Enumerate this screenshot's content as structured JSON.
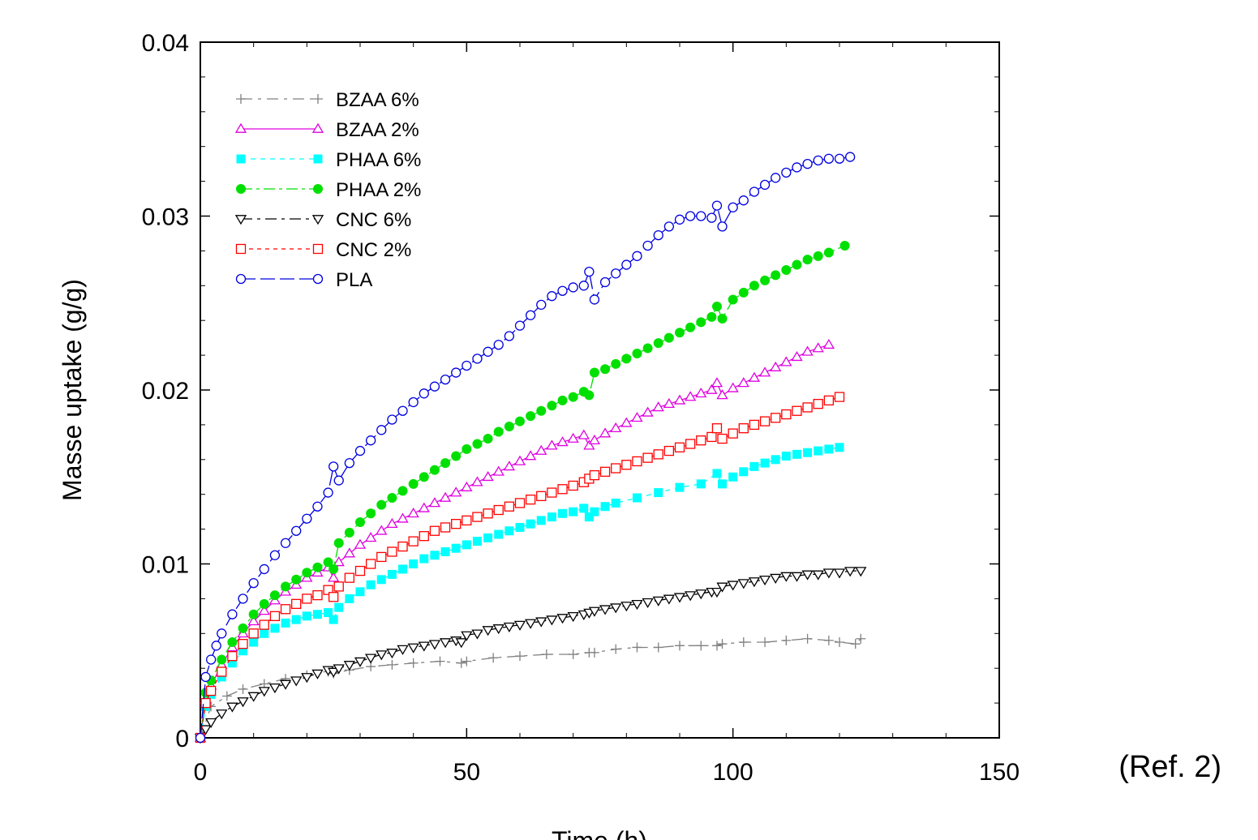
{
  "chart_data": {
    "type": "line",
    "xlabel": "Time (h)",
    "ylabel": "Masse uptake (g/g)",
    "annotation": "(Ref. 2)",
    "xlim": [
      0,
      150
    ],
    "ylim": [
      0,
      0.04
    ],
    "xticks": [
      0,
      50,
      100,
      150
    ],
    "xtick_labels": [
      "0",
      "50",
      "100",
      "150"
    ],
    "yticks": [
      0,
      0.01,
      0.02,
      0.03,
      0.04
    ],
    "ytick_labels": [
      "0",
      "0.01",
      "0.02",
      "0.03",
      "0.04"
    ],
    "grid": false,
    "legend_position": "top-left",
    "series": [
      {
        "name": "BZAA 6%",
        "color": "#808080",
        "marker": "plus",
        "dash": "14,7,4,7",
        "x": [
          0,
          2,
          5,
          8,
          12,
          16,
          20,
          24,
          25,
          28,
          32,
          36,
          40,
          45,
          49,
          50,
          55,
          60,
          65,
          70,
          73,
          74,
          78,
          82,
          86,
          90,
          94,
          97,
          98,
          102,
          106,
          110,
          114,
          118,
          120,
          123,
          124
        ],
        "y": [
          0,
          0.0018,
          0.0024,
          0.0028,
          0.0031,
          0.0034,
          0.0036,
          0.0038,
          0.0037,
          0.0039,
          0.0041,
          0.0042,
          0.0043,
          0.0044,
          0.0043,
          0.0044,
          0.0046,
          0.0047,
          0.0048,
          0.0048,
          0.0049,
          0.0049,
          0.0051,
          0.0052,
          0.0052,
          0.0053,
          0.0053,
          0.0053,
          0.0054,
          0.0055,
          0.0055,
          0.0056,
          0.0057,
          0.0056,
          0.0055,
          0.0054,
          0.0057
        ]
      },
      {
        "name": "BZAA 2%",
        "color": "#e000e0",
        "marker": "triangle-up",
        "dash": "",
        "x": [
          0,
          1,
          2,
          4,
          6,
          8,
          10,
          12,
          14,
          16,
          18,
          20,
          22,
          24,
          25,
          26,
          28,
          30,
          32,
          34,
          36,
          38,
          40,
          42,
          44,
          46,
          48,
          50,
          52,
          54,
          56,
          58,
          60,
          62,
          64,
          66,
          68,
          70,
          72,
          73,
          74,
          76,
          78,
          80,
          82,
          84,
          86,
          88,
          90,
          92,
          94,
          96,
          97,
          98,
          100,
          102,
          104,
          106,
          108,
          110,
          112,
          114,
          116,
          118
        ],
        "y": [
          0,
          0.0022,
          0.003,
          0.0042,
          0.0052,
          0.006,
          0.0067,
          0.0073,
          0.0079,
          0.0084,
          0.0088,
          0.0092,
          0.0095,
          0.0098,
          0.0092,
          0.0101,
          0.0106,
          0.0111,
          0.0115,
          0.0119,
          0.0123,
          0.0126,
          0.0129,
          0.0132,
          0.0135,
          0.0138,
          0.0141,
          0.0144,
          0.0147,
          0.015,
          0.0153,
          0.0156,
          0.0159,
          0.0162,
          0.0165,
          0.0168,
          0.017,
          0.0172,
          0.0174,
          0.0168,
          0.0171,
          0.0175,
          0.0178,
          0.0181,
          0.0184,
          0.0187,
          0.019,
          0.0192,
          0.0194,
          0.0196,
          0.0198,
          0.02,
          0.0204,
          0.0197,
          0.0201,
          0.0204,
          0.0207,
          0.021,
          0.0213,
          0.0216,
          0.0219,
          0.0222,
          0.0224,
          0.0226
        ]
      },
      {
        "name": "PHAA 6%",
        "color": "#00ffff",
        "marker": "square-filled",
        "dash": "6,6",
        "x": [
          0,
          1,
          2,
          4,
          6,
          8,
          10,
          12,
          14,
          16,
          18,
          20,
          22,
          24,
          25,
          26,
          28,
          30,
          32,
          34,
          36,
          38,
          40,
          42,
          44,
          46,
          48,
          50,
          52,
          54,
          56,
          58,
          60,
          62,
          64,
          66,
          68,
          70,
          72,
          73,
          74,
          76,
          78,
          82,
          86,
          90,
          94,
          97,
          98,
          100,
          102,
          104,
          106,
          108,
          110,
          112,
          114,
          116,
          118,
          120
        ],
        "y": [
          0,
          0.0018,
          0.0025,
          0.0035,
          0.0043,
          0.005,
          0.0055,
          0.006,
          0.0063,
          0.0066,
          0.0068,
          0.007,
          0.0071,
          0.0072,
          0.0068,
          0.0075,
          0.008,
          0.0084,
          0.0088,
          0.0091,
          0.0094,
          0.0097,
          0.01,
          0.0103,
          0.0105,
          0.0107,
          0.0109,
          0.0111,
          0.0113,
          0.0115,
          0.0117,
          0.0119,
          0.0121,
          0.0123,
          0.0125,
          0.0127,
          0.0129,
          0.013,
          0.0132,
          0.0127,
          0.013,
          0.0133,
          0.0135,
          0.0138,
          0.0141,
          0.0144,
          0.0146,
          0.0152,
          0.0146,
          0.015,
          0.0153,
          0.0156,
          0.0158,
          0.016,
          0.0162,
          0.0163,
          0.0164,
          0.0165,
          0.0166,
          0.0167
        ]
      },
      {
        "name": "PHAA 2%",
        "color": "#00e000",
        "marker": "circle-filled",
        "dash": "14,5,4,5",
        "x": [
          0,
          1,
          2,
          4,
          6,
          8,
          10,
          12,
          14,
          16,
          18,
          20,
          22,
          24,
          25,
          26,
          28,
          30,
          32,
          34,
          36,
          38,
          40,
          42,
          44,
          46,
          48,
          50,
          52,
          54,
          56,
          58,
          60,
          62,
          64,
          66,
          68,
          70,
          72,
          73,
          74,
          76,
          78,
          80,
          82,
          84,
          86,
          88,
          90,
          92,
          94,
          96,
          97,
          98,
          100,
          102,
          104,
          106,
          108,
          110,
          112,
          114,
          116,
          118,
          121
        ],
        "y": [
          0,
          0.0026,
          0.0033,
          0.0045,
          0.0055,
          0.0063,
          0.0071,
          0.0077,
          0.0082,
          0.0087,
          0.0091,
          0.0095,
          0.0098,
          0.0101,
          0.0097,
          0.0112,
          0.0118,
          0.0124,
          0.0129,
          0.0134,
          0.0138,
          0.0142,
          0.0146,
          0.015,
          0.0154,
          0.0158,
          0.0162,
          0.0166,
          0.0169,
          0.0172,
          0.0176,
          0.0179,
          0.0182,
          0.0185,
          0.0188,
          0.0191,
          0.0194,
          0.0196,
          0.0199,
          0.0197,
          0.021,
          0.0212,
          0.0215,
          0.0218,
          0.0221,
          0.0224,
          0.0227,
          0.023,
          0.0233,
          0.0236,
          0.0239,
          0.0242,
          0.0248,
          0.0241,
          0.0252,
          0.0256,
          0.026,
          0.0263,
          0.0266,
          0.0269,
          0.0272,
          0.0275,
          0.0277,
          0.0279,
          0.0283
        ]
      },
      {
        "name": "CNC 6%",
        "color": "#000000",
        "marker": "triangle-down",
        "dash": "14,6,4,6",
        "x": [
          0,
          1,
          2,
          4,
          6,
          8,
          10,
          12,
          14,
          16,
          18,
          20,
          22,
          24,
          25,
          26,
          28,
          30,
          32,
          34,
          36,
          38,
          40,
          42,
          44,
          46,
          48,
          49,
          50,
          52,
          54,
          56,
          58,
          60,
          62,
          64,
          66,
          68,
          70,
          72,
          73,
          74,
          76,
          78,
          80,
          82,
          84,
          86,
          88,
          90,
          92,
          94,
          96,
          97,
          98,
          100,
          102,
          104,
          106,
          108,
          110,
          112,
          114,
          116,
          118,
          120,
          122,
          124
        ],
        "y": [
          0,
          0.0005,
          0.0009,
          0.0014,
          0.0018,
          0.0021,
          0.0024,
          0.0027,
          0.0029,
          0.0031,
          0.0033,
          0.0035,
          0.0037,
          0.0039,
          0.0038,
          0.004,
          0.0042,
          0.0044,
          0.0046,
          0.0048,
          0.0049,
          0.0051,
          0.0052,
          0.0053,
          0.0054,
          0.0055,
          0.0056,
          0.0055,
          0.0059,
          0.006,
          0.0062,
          0.0063,
          0.0064,
          0.0065,
          0.0066,
          0.0067,
          0.0068,
          0.0069,
          0.007,
          0.0071,
          0.0072,
          0.0073,
          0.0074,
          0.0075,
          0.0076,
          0.0077,
          0.0078,
          0.0079,
          0.008,
          0.0081,
          0.0082,
          0.0083,
          0.0084,
          0.0084,
          0.0087,
          0.0088,
          0.0089,
          0.009,
          0.0091,
          0.0092,
          0.0093,
          0.0093,
          0.0094,
          0.0094,
          0.0095,
          0.0095,
          0.0096,
          0.0096
        ]
      },
      {
        "name": "CNC 2%",
        "color": "#ff0000",
        "marker": "square-open",
        "dash": "5,5",
        "x": [
          0,
          1,
          2,
          4,
          6,
          8,
          10,
          12,
          14,
          16,
          18,
          20,
          22,
          24,
          25,
          26,
          28,
          30,
          32,
          34,
          36,
          38,
          40,
          42,
          44,
          46,
          48,
          50,
          52,
          54,
          56,
          58,
          60,
          62,
          64,
          66,
          68,
          70,
          72,
          73,
          74,
          76,
          78,
          80,
          82,
          84,
          86,
          88,
          90,
          92,
          94,
          96,
          97,
          98,
          100,
          102,
          104,
          106,
          108,
          110,
          112,
          114,
          116,
          118,
          120
        ],
        "y": [
          0,
          0.002,
          0.0027,
          0.0038,
          0.0047,
          0.0054,
          0.006,
          0.0065,
          0.007,
          0.0074,
          0.0077,
          0.008,
          0.0082,
          0.0085,
          0.0081,
          0.0087,
          0.0092,
          0.0096,
          0.01,
          0.0104,
          0.0107,
          0.011,
          0.0113,
          0.0116,
          0.0119,
          0.0121,
          0.0123,
          0.0125,
          0.0127,
          0.0129,
          0.0131,
          0.0133,
          0.0135,
          0.0137,
          0.0139,
          0.0141,
          0.0143,
          0.0145,
          0.0147,
          0.0149,
          0.0151,
          0.0153,
          0.0155,
          0.0157,
          0.0159,
          0.0161,
          0.0163,
          0.0165,
          0.0167,
          0.0169,
          0.0171,
          0.0173,
          0.0178,
          0.0172,
          0.0175,
          0.0178,
          0.018,
          0.0182,
          0.0184,
          0.0186,
          0.0188,
          0.019,
          0.0192,
          0.0194,
          0.0196
        ]
      },
      {
        "name": "PLA",
        "color": "#0000e0",
        "marker": "circle-open",
        "dash": "18,6",
        "x": [
          0,
          1,
          2,
          3,
          4,
          6,
          8,
          10,
          12,
          14,
          16,
          18,
          20,
          22,
          24,
          25,
          26,
          28,
          30,
          32,
          34,
          36,
          38,
          40,
          42,
          44,
          46,
          48,
          50,
          52,
          54,
          56,
          58,
          60,
          62,
          64,
          66,
          68,
          70,
          72,
          73,
          74,
          76,
          78,
          80,
          82,
          84,
          86,
          88,
          90,
          92,
          94,
          96,
          97,
          98,
          100,
          102,
          104,
          106,
          108,
          110,
          112,
          114,
          116,
          118,
          120,
          122
        ],
        "y": [
          0,
          0.0035,
          0.0045,
          0.0053,
          0.006,
          0.0071,
          0.008,
          0.0089,
          0.0097,
          0.0105,
          0.0112,
          0.0119,
          0.0126,
          0.0133,
          0.0141,
          0.0156,
          0.0148,
          0.0158,
          0.0165,
          0.0171,
          0.0177,
          0.0183,
          0.0188,
          0.0193,
          0.0198,
          0.0202,
          0.0206,
          0.021,
          0.0214,
          0.0218,
          0.0222,
          0.0226,
          0.0231,
          0.0237,
          0.0243,
          0.0249,
          0.0254,
          0.0257,
          0.0259,
          0.026,
          0.0268,
          0.0252,
          0.0262,
          0.0267,
          0.0272,
          0.0277,
          0.0283,
          0.0289,
          0.0294,
          0.0298,
          0.03,
          0.03,
          0.0299,
          0.0306,
          0.0294,
          0.0305,
          0.0309,
          0.0314,
          0.0318,
          0.0322,
          0.0325,
          0.0328,
          0.033,
          0.0332,
          0.0333,
          0.0333,
          0.0334
        ]
      }
    ]
  }
}
